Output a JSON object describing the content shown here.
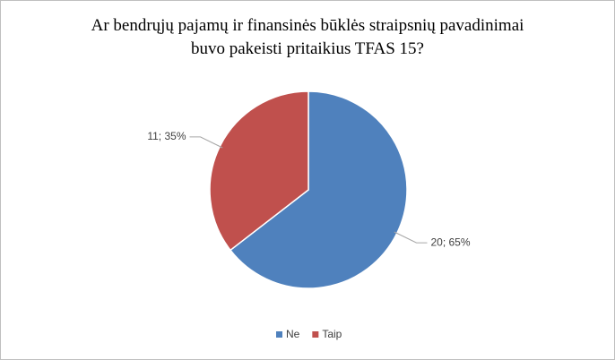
{
  "chart_data": {
    "type": "pie",
    "title": [
      "Ar bendrųjų pajamų ir finansinės būklės straipsnių pavadinimai",
      "buvo pakeisti pritaikius TFAS 15?"
    ],
    "categories": [
      "Ne",
      "Taip"
    ],
    "values": [
      20,
      11
    ],
    "value_labels": [
      "20; 65%",
      "11; 35%"
    ],
    "colors": [
      "#4f81bd",
      "#c0504d"
    ],
    "legend": "bottom"
  }
}
